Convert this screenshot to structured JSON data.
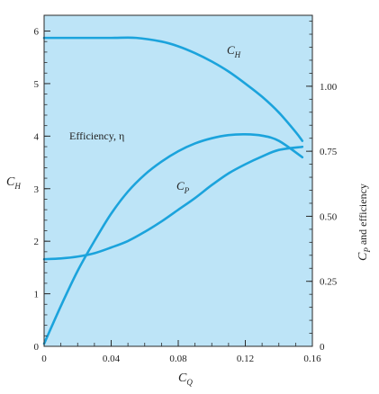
{
  "chart_data": {
    "type": "line",
    "x_axis": {
      "label": "C",
      "label_sub": "Q",
      "range": [
        0,
        0.16
      ],
      "ticks": [
        0,
        0.04,
        0.08,
        0.12,
        0.16
      ],
      "tick_labels": [
        "0",
        "0.04",
        "0.08",
        "0.12",
        "0.16"
      ]
    },
    "y_left": {
      "label": "C",
      "label_sub": "H",
      "range": [
        0,
        6.3
      ],
      "ticks": [
        0,
        1,
        2,
        3,
        4,
        5,
        6
      ],
      "tick_labels": [
        "0",
        "1",
        "2",
        "3",
        "4",
        "5",
        "6"
      ]
    },
    "y_right": {
      "label": "C",
      "label_sub": "P",
      "label_rest": " and efficiency",
      "ticks": [
        0,
        0.25,
        0.5,
        0.75,
        1.0
      ],
      "tick_labels": [
        "0",
        "0.25",
        "0.50",
        "0.75",
        "1.00"
      ],
      "map_to_left": [
        [
          0,
          0
        ],
        [
          1.0,
          4.95
        ]
      ]
    },
    "series": [
      {
        "name": "C",
        "name_sub": "H",
        "axis": "left",
        "color": "#1ba3dc",
        "x": [
          0,
          0.02,
          0.04,
          0.055,
          0.07,
          0.08,
          0.09,
          0.1,
          0.11,
          0.12,
          0.13,
          0.14,
          0.15,
          0.154
        ],
        "y": [
          5.87,
          5.87,
          5.87,
          5.87,
          5.8,
          5.71,
          5.58,
          5.42,
          5.23,
          5.0,
          4.75,
          4.45,
          4.08,
          3.91
        ]
      },
      {
        "name": "Efficiency, η",
        "axis": "right",
        "color": "#1ba3dc",
        "x": [
          0,
          0.01,
          0.02,
          0.03,
          0.04,
          0.05,
          0.06,
          0.07,
          0.08,
          0.09,
          0.1,
          0.11,
          0.12,
          0.13,
          0.14,
          0.154
        ],
        "y": [
          0.01,
          0.155,
          0.29,
          0.405,
          0.51,
          0.595,
          0.66,
          0.71,
          0.75,
          0.78,
          0.8,
          0.812,
          0.815,
          0.81,
          0.79,
          0.727
        ]
      },
      {
        "name": "C",
        "name_sub": "P",
        "axis": "right",
        "color": "#1ba3dc",
        "x": [
          0,
          0.01,
          0.02,
          0.03,
          0.04,
          0.05,
          0.06,
          0.07,
          0.08,
          0.09,
          0.1,
          0.11,
          0.12,
          0.13,
          0.14,
          0.154
        ],
        "y": [
          0.335,
          0.338,
          0.345,
          0.358,
          0.38,
          0.405,
          0.44,
          0.48,
          0.525,
          0.57,
          0.62,
          0.665,
          0.7,
          0.73,
          0.755,
          0.767
        ]
      }
    ],
    "legend": "none",
    "grid": false
  },
  "colors": {
    "plot_background": "#bde4f7",
    "curve": "#1ba3dc",
    "axis": "#2a2a2a"
  }
}
